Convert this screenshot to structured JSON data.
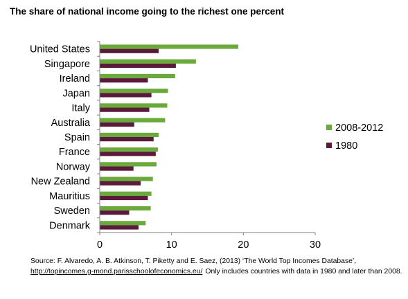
{
  "chart_data": {
    "type": "bar",
    "orientation": "horizontal",
    "title": "The share of national income going to the richest one percent",
    "categories": [
      "United States",
      "Singapore",
      "Ireland",
      "Japan",
      "Italy",
      "Australia",
      "Spain",
      "France",
      "Norway",
      "New Zealand",
      "Mauritius",
      "Sweden",
      "Denmark"
    ],
    "series": [
      {
        "name": "2008-2012",
        "color": "#6aaa3a",
        "values": [
          19.3,
          13.4,
          10.5,
          9.5,
          9.4,
          9.1,
          8.2,
          8.1,
          7.9,
          7.4,
          7.2,
          7.1,
          6.4
        ]
      },
      {
        "name": "1980",
        "color": "#5b1a3c",
        "values": [
          8.2,
          10.6,
          6.7,
          7.2,
          6.9,
          4.8,
          7.5,
          7.8,
          4.7,
          5.7,
          6.7,
          4.1,
          5.4
        ]
      }
    ],
    "xlim": [
      0,
      30
    ],
    "xticks": [
      "0",
      "10",
      "20",
      "30"
    ],
    "legend": "right",
    "grid": false
  },
  "source": {
    "line1": "Source: F. Alvaredo, A. B. Atkinson, T. Piketty and E. Saez, (2013) ‘The World Top Incomes Database’,",
    "link": "http://topincomes.g-mond.parisschoolofeconomics.eu/",
    "line2_tail": "Only includes countries with data in 1980 and later than 2008."
  }
}
